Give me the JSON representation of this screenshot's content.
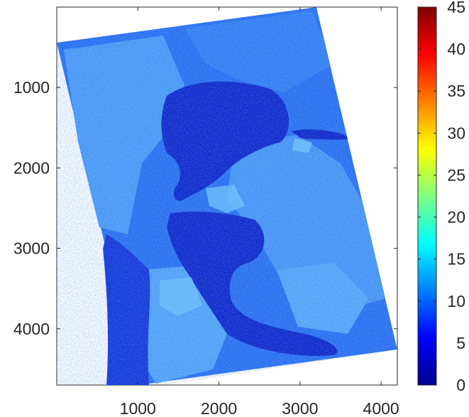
{
  "image": {
    "x_extent": [
      0,
      4200
    ],
    "y_extent": [
      0,
      4700
    ],
    "x_ticks": [
      "1000",
      "2000",
      "3000",
      "4000"
    ],
    "y_ticks": [
      "1000",
      "2000",
      "3000",
      "4000"
    ],
    "colorbar": {
      "min": 0,
      "max": 45,
      "ticks": [
        "0",
        "5",
        "10",
        "15",
        "20",
        "25",
        "30",
        "35",
        "40",
        "45"
      ],
      "colormap": "jet"
    },
    "colors": {
      "water_dark": "#0a1fd0",
      "water": "#1236e0",
      "land_mid": "#1f5cf0",
      "land_light": "#3d8ef6",
      "land_bright": "#5fb0fa"
    }
  }
}
